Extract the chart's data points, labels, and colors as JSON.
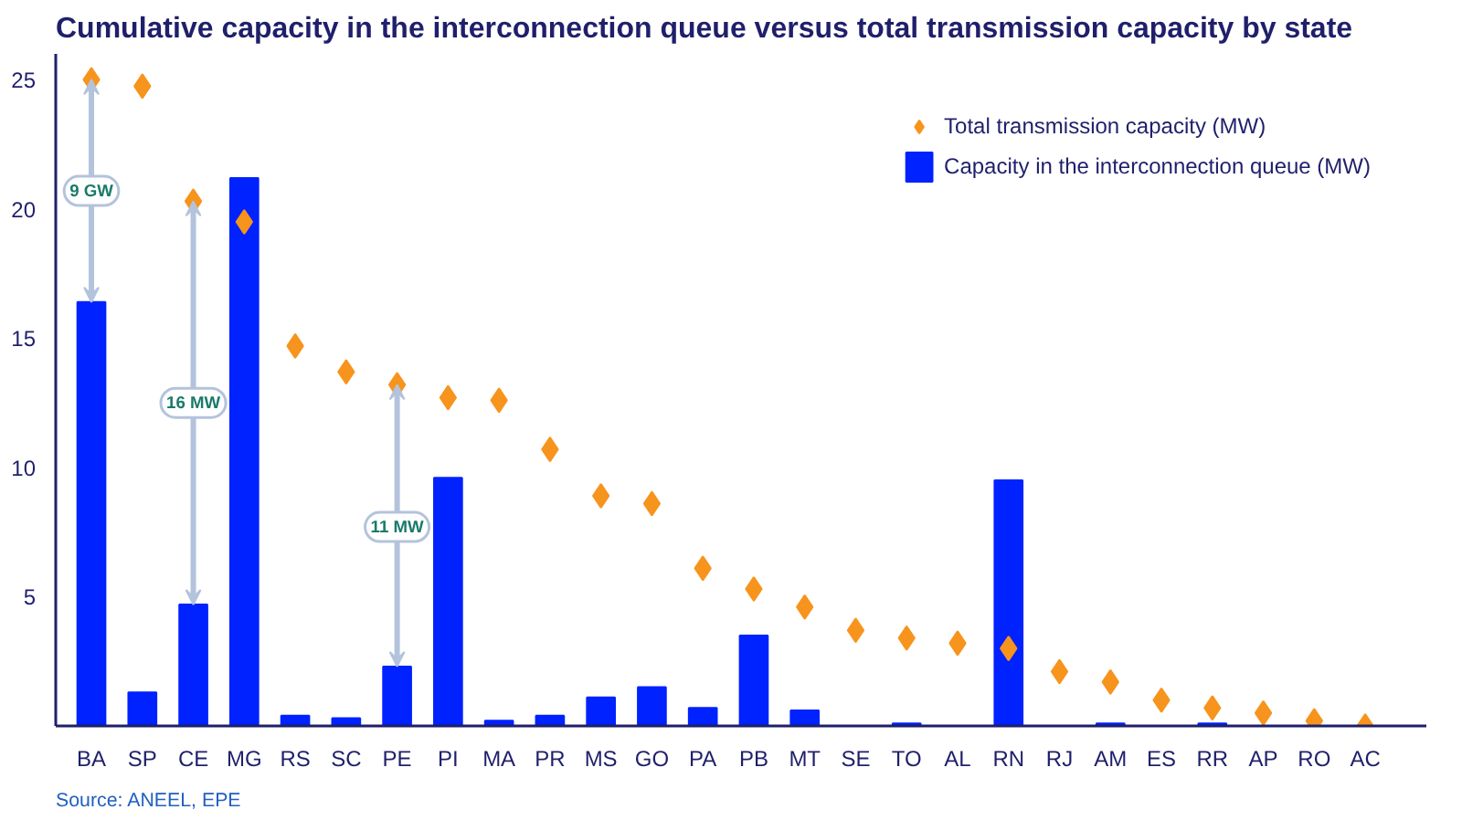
{
  "chart_data": {
    "type": "bar",
    "title": "Cumulative capacity in the interconnection queue versus total transmission capacity by state",
    "categories": [
      "BA",
      "SP",
      "CE",
      "MG",
      "RS",
      "SC",
      "PE",
      "PI",
      "MA",
      "PR",
      "MS",
      "GO",
      "PA",
      "PB",
      "MT",
      "SE",
      "TO",
      "AL",
      "RN",
      "RJ",
      "AM",
      "ES",
      "RR",
      "AP",
      "RO",
      "AC"
    ],
    "series": [
      {
        "name": "Total transmission capacity (MW)",
        "type": "scatter",
        "marker": "diamond",
        "color": "#f7941d",
        "values": [
          25,
          24.75,
          20.3,
          19.5,
          14.7,
          13.7,
          13.2,
          12.7,
          12.6,
          10.7,
          8.9,
          8.6,
          6.1,
          5.3,
          4.6,
          3.7,
          3.4,
          3.2,
          3.0,
          2.1,
          1.7,
          1.0,
          0.7,
          0.5,
          0.2,
          0
        ]
      },
      {
        "name": "Capacity in the interconnection queue (MW)",
        "color": "#0022ff",
        "values": [
          16.4,
          1.3,
          4.7,
          21.2,
          0.4,
          0.3,
          2.3,
          9.6,
          0.2,
          0.4,
          1.1,
          1.5,
          0.7,
          3.5,
          0.6,
          0,
          0.1,
          0,
          9.5,
          0,
          0.1,
          0,
          0.1,
          0,
          0,
          0
        ]
      }
    ],
    "ylim": [
      0,
      26
    ],
    "yticks": [
      5,
      10,
      15,
      20,
      25
    ],
    "grid": false,
    "legend": "top right",
    "annotations": [
      {
        "text": "9 GW",
        "x": "BA",
        "y": 20.7
      },
      {
        "text": "16 MW",
        "x": "CE",
        "y": 12.5
      },
      {
        "text": "11 MW",
        "x": "PE",
        "y": 7.7
      },
      "Source: ANEEL, EPE"
    ]
  }
}
